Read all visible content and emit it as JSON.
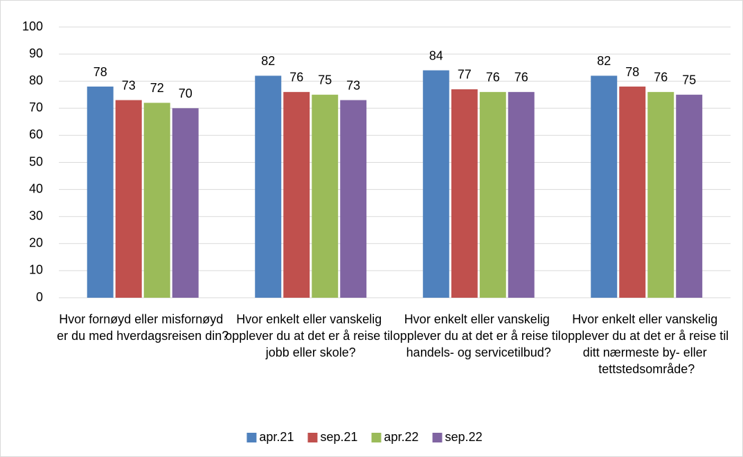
{
  "chart_data": {
    "type": "bar",
    "categories": [
      "Hvor fornøyd eller misfornøyd er du med hverdagsreisen din?",
      "Hvor enkelt eller vanskelig opplever du at det er å reise til jobb eller skole?",
      "Hvor enkelt eller vanskelig opplever du at det er å reise til handels- og servicetilbud?",
      "Hvor enkelt eller vanskelig opplever du at det er å reise til ditt nærmeste by- eller tettstedsområde?"
    ],
    "series": [
      {
        "name": "apr.21",
        "color": "#4f81bd",
        "values": [
          78,
          82,
          84,
          82
        ]
      },
      {
        "name": "sep.21",
        "color": "#c0504d",
        "values": [
          73,
          76,
          77,
          78
        ]
      },
      {
        "name": "apr.22",
        "color": "#9bbb59",
        "values": [
          72,
          75,
          76,
          76
        ]
      },
      {
        "name": "sep.22",
        "color": "#8064a2",
        "values": [
          70,
          73,
          76,
          75
        ]
      }
    ],
    "ylim": [
      0,
      100
    ],
    "yticks": [
      0,
      10,
      20,
      30,
      40,
      50,
      60,
      70,
      80,
      90,
      100
    ],
    "grid": true,
    "legend": "bottom"
  }
}
